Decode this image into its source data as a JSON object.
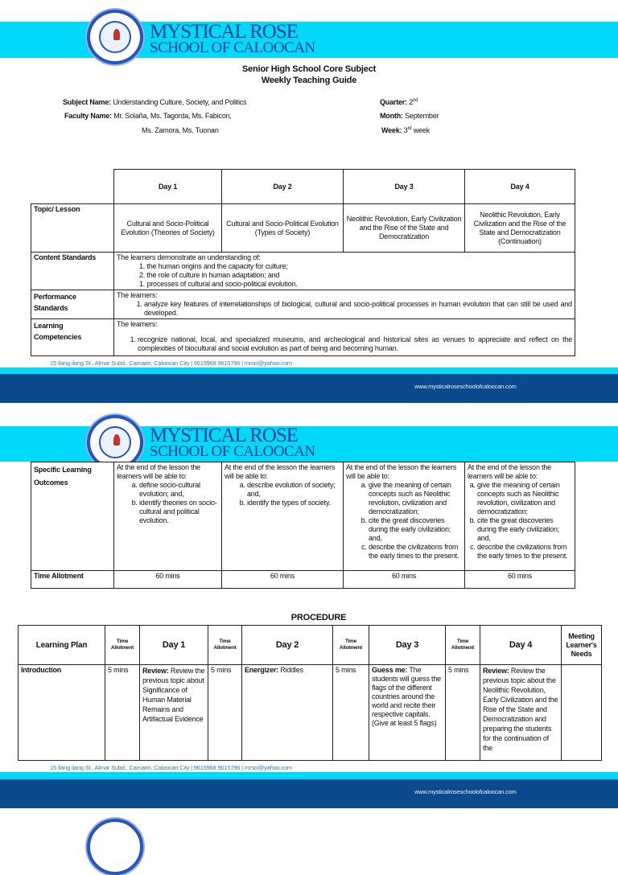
{
  "brand": {
    "line1": "MYSTICAL ROSE",
    "line2": "SCHOOL OF CALOOCAN"
  },
  "doc": {
    "title1": "Senior High School Core Subject",
    "title2": "Weekly Teaching Guide"
  },
  "info": {
    "subject_label": "Subject Name:",
    "subject": "Understanding Culture, Society, and Politics",
    "faculty_label": "Faculty Name:",
    "faculty1": "Mr. Solaña, Ms. Tagorda, Ms. Fabicon,",
    "faculty2": "Ms. Zamora, Ms. Tuonan",
    "quarter_label": "Quarter:",
    "quarter": "2",
    "quarter_sup": "nd",
    "month_label": "Month:",
    "month": "September",
    "week_label": "Week:",
    "week": "3",
    "week_sup": "rd",
    "week_suffix": " week"
  },
  "days": [
    "Day 1",
    "Day 2",
    "Day 3",
    "Day 4"
  ],
  "topic": {
    "label": "Topic/ Lesson",
    "values": [
      "Cultural and Socio-Political Evolution (Theories of Society)",
      "Cultural and Socio-Political Evolution (Types of Society)",
      "Neolithic Revolution, Early Civilization and the Rise of the State and Democratization",
      "Neolithic Revolution, Early Civilization and the Rise of the State and Democratization (Continuation)"
    ]
  },
  "content": {
    "label": "Content Standards",
    "intro": "The learners demonstrate an understanding of:",
    "items": [
      "the human origins and the capacity for culture;",
      "the role of culture in human adaptation; and",
      "processes of cultural and socio-political evolution."
    ],
    "numbers": [
      "1.",
      "2.",
      "1."
    ]
  },
  "performance": {
    "label1": "Performance",
    "label2": "Standards",
    "intro": "The learners:",
    "items": [
      "analyze key features of interrelationships of biological, cultural and socio-political processes in human evolution that can still be used and developed."
    ]
  },
  "competencies": {
    "label1": "Learning",
    "label2": "Competencies",
    "intro": "The learners:",
    "items": [
      "recognize national, local, and specialized museums, and archeological and historical sites as venues to appreciate and reflect on the complexities of biocultural and social evolution as part of being and becoming human."
    ]
  },
  "footer": {
    "address": "15 Ilang ilang St., Almar Subd., Camarin, Caloocan City  |  9615968  9615796  |  mrsci@yahoo.com",
    "website": "www.mysticalroseschoolofcaloocan.com"
  },
  "outcomes": {
    "label1": "Specific Learning",
    "label2": "Outcomes",
    "intro": "At the end of the lesson the learners will be able to:",
    "days": [
      [
        "define socio-cultural evolution; and,",
        "identify theories on socio-cultural and political evolution."
      ],
      [
        "describe evolution of society; and,",
        "identify the types of society."
      ],
      [
        "give the meaning of certain concepts such as Neolithic revolution, civilization and democratization;",
        "cite the great discoveries during the early civilization; and,",
        "describe the civilizations from the early times to the present."
      ],
      [
        "give the meaning of certain concepts such as Neolithic revolution, civilization and democratization;",
        "cite the great discoveries during the early civilization; and,",
        "describe the civilizations from the early times to the present."
      ]
    ]
  },
  "time_allotment": {
    "label": "Time Allotment",
    "values": [
      "60 mins",
      "60 mins",
      "60 mins",
      "60 mins"
    ]
  },
  "procedure": {
    "title": "PROCEDURE",
    "headers": {
      "plan": "Learning Plan",
      "time": "Time Allotment",
      "needs": "Meeting Learner's Needs"
    },
    "row": {
      "label": "Introduction",
      "times": [
        "5 mins",
        "5 mins",
        "5 mins",
        "5 mins"
      ],
      "cells": [
        {
          "bold": "Review:",
          "text": " Review the previous topic about Significance of Human Material Remains and Artifactual Evidence"
        },
        {
          "bold": "Energizer:",
          "text": " Riddles"
        },
        {
          "bold": "Guess me:",
          "text": " The students will guess the flags of the different countries around the world and recite their respective capitals. (Give at least 5 flags)"
        },
        {
          "bold": "Review:",
          "text": " Review the previous topic about the Neolithic Revolution, Early Civilization and the Rise of the State and Democratization and preparing the students for the continuation of the"
        }
      ]
    }
  },
  "colors": {
    "cyan": "#00d9f9",
    "navy": "#0b4a8c",
    "brand": "#1b3f95"
  }
}
